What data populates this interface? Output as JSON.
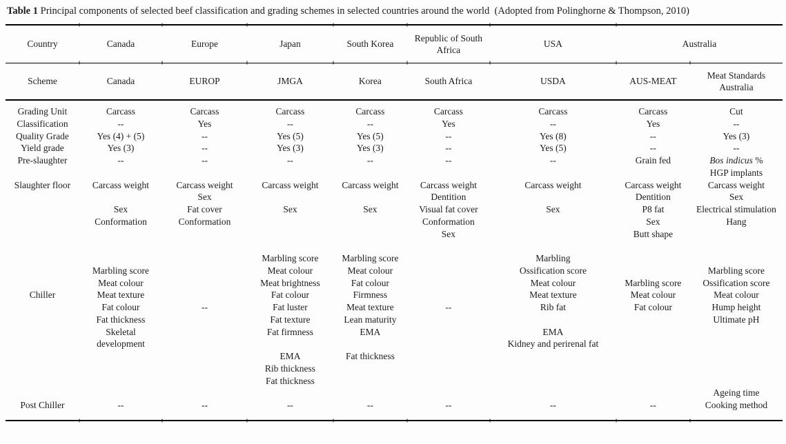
{
  "title": {
    "label": "Table 1",
    "text": " Principal components of selected beef classification and grading schemes in selected countries around the world  (Adopted from Polinghorne & Thompson, 2010)"
  },
  "table": {
    "country_row": {
      "header": "Country",
      "cells": [
        "Canada",
        "Europe",
        "Japan",
        "South Korea",
        "Republic of South Africa",
        "USA"
      ],
      "australia_span": "Australia"
    },
    "scheme_row": {
      "header": "Scheme",
      "cells": [
        "Canada",
        "EUROP",
        "JMGA",
        "Korea",
        "South Africa",
        "USDA",
        "AUS-MEAT",
        "Meat Standards Australia"
      ]
    },
    "groups": [
      {
        "id": "grading-unit",
        "label": [
          "Grading Unit"
        ],
        "cells": [
          [
            "Carcass"
          ],
          [
            "Carcass"
          ],
          [
            "Carcass"
          ],
          [
            "Carcass"
          ],
          [
            "Carcass"
          ],
          [
            "Carcass"
          ],
          [
            "Carcass"
          ],
          [
            "Cut"
          ]
        ]
      },
      {
        "id": "classification",
        "label": [
          "Classification"
        ],
        "cells": [
          [
            "--"
          ],
          [
            "Yes"
          ],
          [
            "--"
          ],
          [
            "--"
          ],
          [
            "Yes"
          ],
          [
            "--"
          ],
          [
            "Yes"
          ],
          [
            "--"
          ]
        ]
      },
      {
        "id": "quality-grade",
        "label": [
          "Quality Grade"
        ],
        "cells": [
          [
            "Yes (4) + (5)"
          ],
          [
            "--"
          ],
          [
            "Yes (5)"
          ],
          [
            "Yes (5)"
          ],
          [
            "--"
          ],
          [
            "Yes (8)"
          ],
          [
            "--"
          ],
          [
            "Yes (3)"
          ]
        ]
      },
      {
        "id": "yield-grade",
        "label": [
          "Yield grade"
        ],
        "cells": [
          [
            "Yes (3)"
          ],
          [
            "--"
          ],
          [
            "Yes (3)"
          ],
          [
            "Yes (3)"
          ],
          [
            "--"
          ],
          [
            "Yes (5)"
          ],
          [
            "--"
          ],
          [
            "--"
          ]
        ]
      },
      {
        "id": "pre-slaughter",
        "label": [
          "Pre-slaughter"
        ],
        "cells": [
          [
            "--"
          ],
          [
            "--"
          ],
          [
            "--"
          ],
          [
            "--"
          ],
          [
            "--"
          ],
          [
            "--"
          ],
          [
            "Grain fed"
          ],
          [
            {
              "em": "Bos indicus",
              "rest": " %"
            },
            "HGP implants"
          ]
        ]
      },
      {
        "id": "slaughter-floor",
        "label": [
          "Slaughter floor"
        ],
        "cells": [
          [
            "Carcass weight",
            "",
            "Sex",
            "Conformation"
          ],
          [
            "Carcass weight",
            "Sex",
            "Fat cover",
            "Conformation"
          ],
          [
            "Carcass weight",
            "",
            "Sex"
          ],
          [
            "Carcass weight",
            "",
            "Sex"
          ],
          [
            "Carcass weight",
            "Dentition",
            "Visual fat cover",
            "Conformation",
            "Sex",
            ""
          ],
          [
            "Carcass weight",
            "",
            "Sex"
          ],
          [
            "Carcass weight",
            "Dentition",
            "P8 fat",
            "Sex",
            "Butt shape"
          ],
          [
            "Carcass weight",
            "Sex",
            "Electrical stimulation",
            "Hang"
          ]
        ]
      },
      {
        "id": "chiller",
        "label": [
          "",
          "",
          "",
          "Chiller"
        ],
        "cells": [
          [
            "",
            "Marbling score",
            "Meat colour",
            "Meat texture",
            "Fat colour",
            "Fat thickness",
            "Skeletal",
            "development"
          ],
          [
            "",
            "",
            "",
            "",
            "--"
          ],
          [
            "Marbling score",
            "Meat colour",
            "Meat brightness",
            "Fat colour",
            "Fat luster",
            "Fat texture",
            "Fat firmness",
            "",
            "EMA",
            "Rib thickness",
            "Fat thickness"
          ],
          [
            "Marbling score",
            "Meat colour",
            "Fat colour",
            "Firmness",
            "Meat texture",
            "Lean maturity",
            "EMA",
            "",
            "Fat thickness"
          ],
          [
            "",
            "",
            "",
            "",
            "--"
          ],
          [
            "Marbling",
            "Ossification score",
            "Meat colour",
            "Meat texture",
            "Rib fat",
            "",
            "EMA",
            "Kidney and perirenal fat"
          ],
          [
            "",
            "",
            "Marbling score",
            "Meat colour",
            "Fat colour"
          ],
          [
            "",
            "Marbling score",
            "Ossification score",
            "Meat colour",
            "Hump height",
            "Ultimate pH"
          ]
        ]
      },
      {
        "id": "post-chiller",
        "label": [
          "",
          "Post Chiller"
        ],
        "cells": [
          [
            "",
            "--"
          ],
          [
            "",
            "--"
          ],
          [
            "",
            "--"
          ],
          [
            "",
            "--"
          ],
          [
            "",
            "--"
          ],
          [
            "",
            "--"
          ],
          [
            "",
            "--"
          ],
          [
            "Ageing time",
            "Cooking method"
          ]
        ]
      }
    ]
  },
  "colors": {
    "text": "#1c1c1c",
    "rule": "#000000",
    "background": "#fdfdfd"
  }
}
